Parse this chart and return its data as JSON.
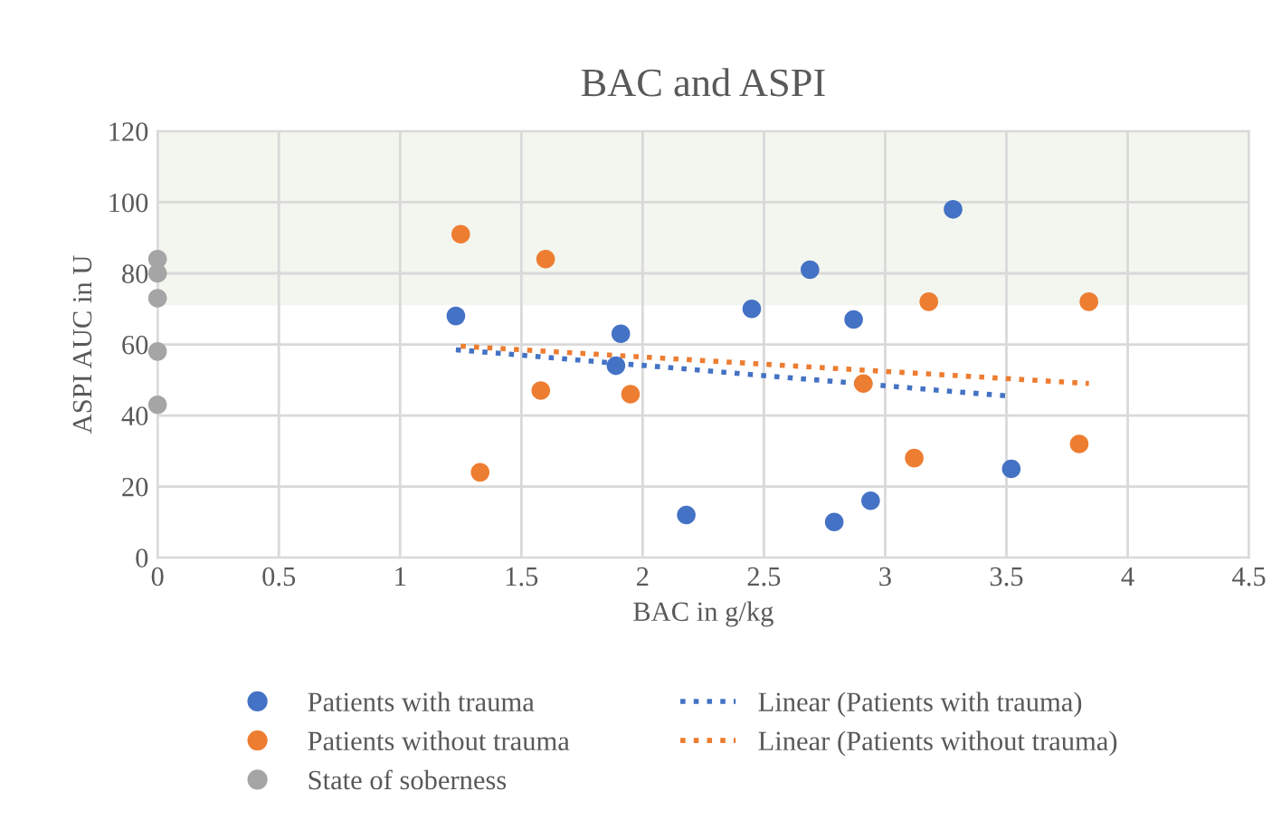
{
  "chart_data": {
    "type": "scatter",
    "title": "BAC and ASPI",
    "xlabel": "BAC in g/kg",
    "ylabel": "ASPI AUC in U",
    "xlim": [
      0,
      4.5
    ],
    "xticks": [
      0,
      0.5,
      1,
      1.5,
      2,
      2.5,
      3,
      3.5,
      4,
      4.5
    ],
    "ylim": [
      0,
      120
    ],
    "yticks": [
      0,
      20,
      40,
      60,
      80,
      100,
      120
    ],
    "grid": true,
    "legend": "bottom",
    "bands": [
      {
        "axis": "y",
        "from": 71,
        "to": 120,
        "color": "#f2f6ee"
      }
    ],
    "series": [
      {
        "name": "Patients with trauma",
        "marker": "circle",
        "color": "#4472c4",
        "x": [
          1.23,
          1.91,
          1.89,
          2.18,
          2.45,
          2.69,
          2.87,
          2.79,
          2.94,
          3.28,
          3.52
        ],
        "values": [
          68,
          63,
          54,
          12,
          70,
          81,
          67,
          10,
          16,
          98,
          25
        ]
      },
      {
        "name": "Patients without trauma",
        "marker": "circle",
        "color": "#ed7d31",
        "x": [
          1.25,
          1.6,
          1.58,
          1.95,
          1.33,
          2.91,
          3.12,
          3.18,
          3.8,
          3.84
        ],
        "values": [
          91,
          84,
          47,
          46,
          24,
          49,
          28,
          72,
          32,
          72
        ]
      },
      {
        "name": "State of soberness",
        "marker": "circle",
        "color": "#a5a5a5",
        "x": [
          0,
          0,
          0,
          0,
          0
        ],
        "values": [
          84,
          80,
          73,
          58,
          43
        ]
      },
      {
        "name": "Linear (Patients with trauma)",
        "type": "line",
        "marker": "none",
        "line_style": "dotted",
        "color": "#4472c4",
        "x": [
          1.23,
          3.5
        ],
        "values": [
          58.5,
          45.5
        ]
      },
      {
        "name": "Linear (Patients without trauma)",
        "type": "line",
        "marker": "none",
        "line_style": "dotted",
        "color": "#ed7d31",
        "x": [
          1.25,
          3.84
        ],
        "values": [
          59.5,
          49
        ]
      }
    ]
  }
}
